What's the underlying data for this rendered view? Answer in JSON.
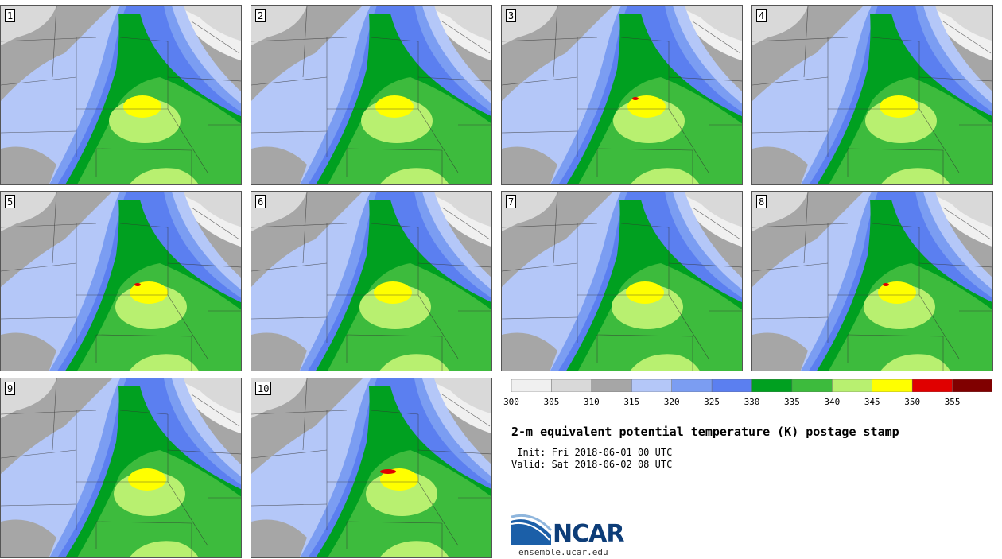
{
  "chart_data": {
    "type": "heatmap",
    "title": "2-m equivalent potential temperature (K) postage stamp",
    "init": " Init: Fri 2018-06-01 00 UTC",
    "valid": "Valid: Sat 2018-06-02 08 UTC",
    "units": "K",
    "panels": [
      {
        "label": "1",
        "peak": 348
      },
      {
        "label": "2",
        "peak": 347
      },
      {
        "label": "3",
        "peak": 351
      },
      {
        "label": "4",
        "peak": 346
      },
      {
        "label": "5",
        "peak": 351
      },
      {
        "label": "6",
        "peak": 349
      },
      {
        "label": "7",
        "peak": 347
      },
      {
        "label": "8",
        "peak": 351
      },
      {
        "label": "9",
        "peak": 347
      },
      {
        "label": "10",
        "peak": 352
      }
    ],
    "colorbar": {
      "levels": [
        "300",
        "305",
        "310",
        "315",
        "320",
        "325",
        "330",
        "335",
        "340",
        "345",
        "350",
        "355"
      ],
      "colors": [
        "#f0f0f0",
        "#d9d9d9",
        "#a6a6a6",
        "#b4c7f8",
        "#7b9df2",
        "#5b7ff0",
        "#00a020",
        "#3dbb3d",
        "#b8f070",
        "#ffff00",
        "#e00000",
        "#800000"
      ]
    }
  },
  "logo": {
    "name": "NCAR",
    "url": "ensemble.ucar.edu"
  }
}
